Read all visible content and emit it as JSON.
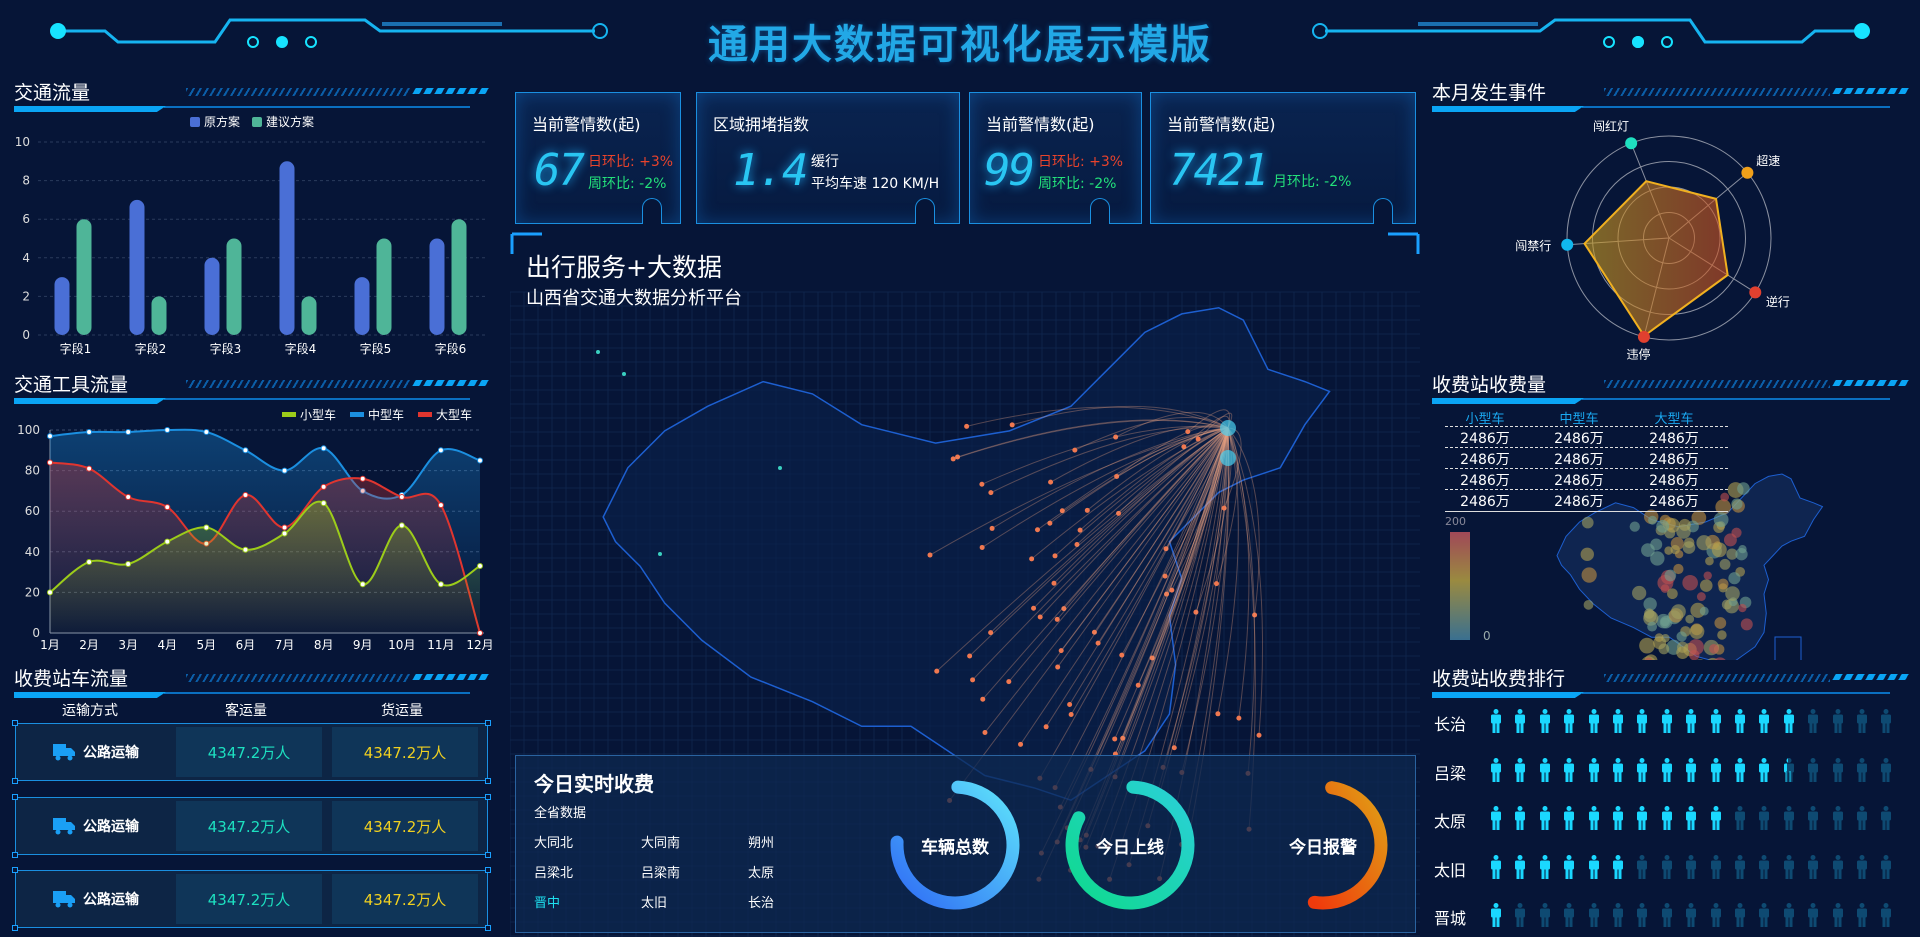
{
  "header": {
    "title": "通用大数据可视化展示模版"
  },
  "traffic_flow": {
    "title": "交通流量",
    "chart_data": {
      "type": "bar",
      "categories": [
        "字段1",
        "字段2",
        "字段3",
        "字段4",
        "字段5",
        "字段6"
      ],
      "series": [
        {
          "name": "原方案",
          "values": [
            3,
            7,
            4,
            9,
            3,
            5
          ],
          "color": "#4a6fd6"
        },
        {
          "name": "建议方案",
          "values": [
            6,
            2,
            5,
            2,
            5,
            6
          ],
          "color": "#4fb598"
        }
      ],
      "ylim": [
        0,
        10
      ],
      "yticks": [
        0,
        2,
        4,
        6,
        8,
        10
      ],
      "grid": true,
      "legend": "top"
    }
  },
  "vehicle_flow": {
    "title": "交通工具流量",
    "chart_data": {
      "type": "line",
      "categories": [
        "1月",
        "2月",
        "3月",
        "4月",
        "5月",
        "6月",
        "7月",
        "8月",
        "9月",
        "10月",
        "11月",
        "12月"
      ],
      "series": [
        {
          "name": "小型车",
          "color": "#9ccc1a",
          "values": [
            20,
            35,
            34,
            45,
            52,
            41,
            49,
            64,
            24,
            53,
            24,
            33
          ]
        },
        {
          "name": "中型车",
          "color": "#1b8fe0",
          "values": [
            97,
            99,
            99,
            100,
            99,
            90,
            80,
            91,
            70,
            68,
            90,
            85
          ]
        },
        {
          "name": "大型车",
          "color": "#e0352f",
          "values": [
            84,
            81,
            67,
            62,
            44,
            68,
            52,
            72,
            76,
            67,
            63,
            0
          ]
        }
      ],
      "ylim": [
        0,
        100
      ],
      "yticks": [
        0,
        20,
        40,
        60,
        80,
        100
      ],
      "grid": true,
      "legend": "top-right",
      "smooth": true,
      "area": true
    }
  },
  "toll_traffic": {
    "title": "收费站车流量",
    "headers": [
      "运输方式",
      "客运量",
      "货运量"
    ],
    "rows": [
      {
        "mode": "公路运输",
        "passenger": "4347.2万人",
        "freight": "4347.2万人"
      },
      {
        "mode": "公路运输",
        "passenger": "4347.2万人",
        "freight": "4347.2万人"
      },
      {
        "mode": "公路运输",
        "passenger": "4347.2万人",
        "freight": "4347.2万人"
      }
    ],
    "icon": "truck-icon"
  },
  "kpis": [
    {
      "title": "当前警情数(起)",
      "value": "67",
      "line1": "日环比: +3%",
      "line2": "周环比: -2%"
    },
    {
      "title": "区域拥堵指数",
      "value": "1.4",
      "line1": "缓行",
      "line2": "平均车速 120  KM/H"
    },
    {
      "title": "当前警情数(起)",
      "value": "99",
      "line1": "日环比: +3%",
      "line2": "周环比: -2%"
    },
    {
      "title": "当前警情数(起)",
      "value": "7421",
      "line2": "月环比: -2%"
    }
  ],
  "map": {
    "title": "出行服务+大数据",
    "subtitle": "山西省交通大数据分析平台"
  },
  "realtime": {
    "title": "今日实时收费",
    "subtitle": "全省数据",
    "stations": [
      "大同北",
      "大同南",
      "朔州",
      "吕梁北",
      "吕梁南",
      "太原",
      "晋中",
      "太旧",
      "长治"
    ],
    "active_station": "晋中",
    "gauges": [
      {
        "label": "车辆总数",
        "fraction": 0.75,
        "colors": [
          "#2f6cf5",
          "#5ee3fb"
        ]
      },
      {
        "label": "今日上线",
        "fraction": 0.82,
        "colors": [
          "#0fd98e",
          "#2ad0d8"
        ]
      },
      {
        "label": "今日报警",
        "fraction": 0.5,
        "colors": [
          "#f03a0c",
          "#e0a015"
        ]
      }
    ]
  },
  "events": {
    "title": "本月发生事件",
    "chart_data": {
      "type": "radar",
      "indicators": [
        {
          "name": "闯红灯",
          "value": 60,
          "color": "#1fe0c0"
        },
        {
          "name": "超速",
          "value": 60,
          "color": "#f0a01a"
        },
        {
          "name": "逆行",
          "value": 68,
          "color": "#e0402f"
        },
        {
          "name": "违停",
          "value": 99,
          "color": "#e0402f"
        },
        {
          "name": "闯禁行",
          "value": 83,
          "color": "#10b8f0"
        }
      ],
      "max": 100
    }
  },
  "toll_revenue": {
    "title": "收费站收费量",
    "headers": [
      "小型车",
      "中型车",
      "大型车"
    ],
    "rows": [
      [
        "2486万",
        "2486万",
        "2486万"
      ],
      [
        "2486万",
        "2486万",
        "2486万"
      ],
      [
        "2486万",
        "2486万",
        "2486万"
      ],
      [
        "2486万",
        "2486万",
        "2486万"
      ]
    ],
    "visual_map": {
      "max": "200",
      "min": "0"
    }
  },
  "ranking": {
    "title": "收费站收费排行",
    "icon": "person-icon",
    "total_icons": 17,
    "items": [
      {
        "name": "长治",
        "value": 13
      },
      {
        "name": "吕梁",
        "value": 12.3
      },
      {
        "name": "太原",
        "value": 10
      },
      {
        "name": "太旧",
        "value": 6
      },
      {
        "name": "晋城",
        "value": 1
      }
    ]
  },
  "colors": {
    "bg": "#061537",
    "accent": "#0aa5f5",
    "cyan": "#29c6f2",
    "green": "#23e07a",
    "red": "#e8432c",
    "yellow": "#f0d020"
  }
}
